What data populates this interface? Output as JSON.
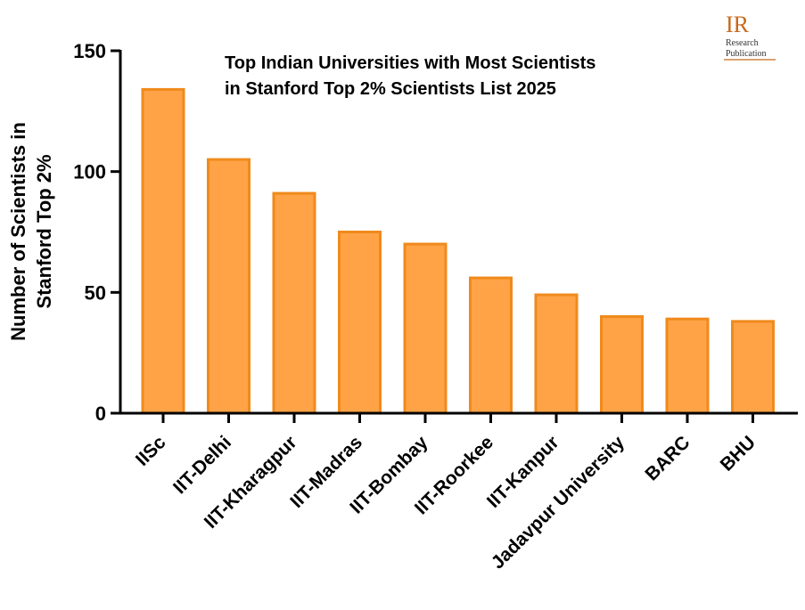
{
  "logo": {
    "mark": "IR",
    "line1": "Research",
    "line2": "Publication",
    "color": "#c8691b"
  },
  "colors": {
    "bar_fill": "#ffa346",
    "bar_stroke": "#f08a1c",
    "axis": "#000000"
  },
  "chart_data": {
    "type": "bar",
    "title_lines": [
      "Top Indian Universities with Most Scientists",
      "in Stanford Top 2%  Scientists List 2025"
    ],
    "xlabel": "",
    "ylabel_lines": [
      "Number of Scientists in",
      "Stanford Top 2%"
    ],
    "ylim": [
      0,
      150
    ],
    "yticks": [
      0,
      50,
      100,
      150
    ],
    "categories": [
      "IISc",
      "IIT-Delhi",
      "IIT-Kharagpur",
      "IIT-Madras",
      "IIT-Bombay",
      "IIT-Roorkee",
      "IIT-Kanpur",
      "Jadavpur University",
      "BARC",
      "BHU"
    ],
    "values": [
      134,
      105,
      91,
      75,
      70,
      56,
      49,
      40,
      39,
      38
    ],
    "grid": false,
    "legend": "none"
  }
}
